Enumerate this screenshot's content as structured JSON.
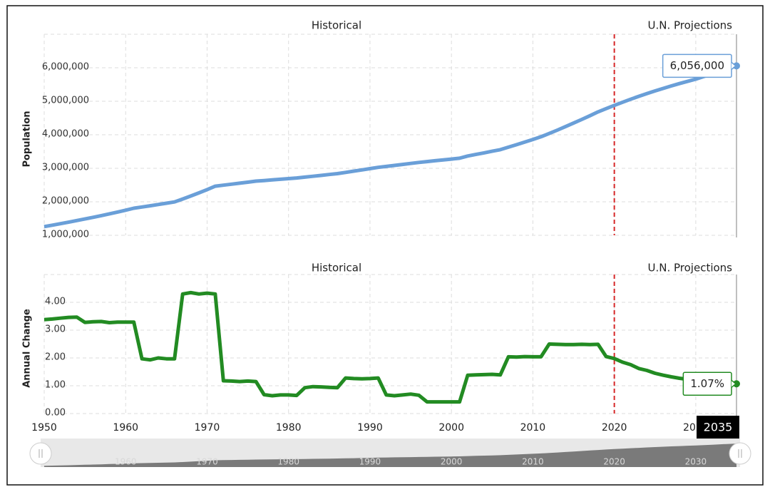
{
  "chart_data": [
    {
      "type": "line",
      "sections": [
        "Historical",
        "U.N. Projections"
      ],
      "ylabel": "Population",
      "color": "#6a9fd8",
      "divider": 2020,
      "divider_color": "#d62728",
      "x": [
        1950,
        1951,
        1952,
        1953,
        1954,
        1955,
        1956,
        1957,
        1958,
        1959,
        1960,
        1961,
        1962,
        1963,
        1964,
        1965,
        1966,
        1967,
        1968,
        1969,
        1970,
        1971,
        1972,
        1973,
        1974,
        1975,
        1976,
        1977,
        1978,
        1979,
        1980,
        1981,
        1982,
        1983,
        1984,
        1985,
        1986,
        1987,
        1988,
        1989,
        1990,
        1991,
        1992,
        1993,
        1994,
        1995,
        1996,
        1997,
        1998,
        1999,
        2000,
        2001,
        2002,
        2003,
        2004,
        2005,
        2006,
        2007,
        2008,
        2009,
        2010,
        2011,
        2012,
        2013,
        2014,
        2015,
        2016,
        2017,
        2018,
        2019,
        2020,
        2021,
        2022,
        2023,
        2024,
        2025,
        2026,
        2027,
        2028,
        2029,
        2030,
        2031,
        2032,
        2033,
        2034,
        2035
      ],
      "values": [
        1260000,
        1302000,
        1346000,
        1392000,
        1440000,
        1488000,
        1537000,
        1588000,
        1640000,
        1694000,
        1750000,
        1808000,
        1844000,
        1881000,
        1919000,
        1957000,
        1996000,
        2082000,
        2172000,
        2266000,
        2363000,
        2465000,
        2495000,
        2525000,
        2555000,
        2586000,
        2617000,
        2635000,
        2654000,
        2672000,
        2691000,
        2710000,
        2736000,
        2762000,
        2788000,
        2814000,
        2841000,
        2877000,
        2914000,
        2951000,
        2989000,
        3027000,
        3055000,
        3085000,
        3115000,
        3145000,
        3175000,
        3200000,
        3225000,
        3250000,
        3275000,
        3300000,
        3366000,
        3413000,
        3460000,
        3508000,
        3556000,
        3630000,
        3705000,
        3782000,
        3860000,
        3940000,
        4038000,
        4139000,
        4243000,
        4349000,
        4458000,
        4569000,
        4683000,
        4781000,
        4877000,
        4970000,
        5060000,
        5146000,
        5229000,
        5308000,
        5384000,
        5457000,
        5527000,
        5594000,
        5659000,
        5740000,
        5820000,
        5900000,
        5978000,
        6056000
      ],
      "value_labels": [
        null,
        null,
        null,
        null,
        null,
        null,
        null,
        null,
        null,
        null,
        null,
        null,
        null,
        null,
        null,
        null,
        null,
        null,
        null,
        null,
        null,
        null,
        null,
        null,
        null,
        null,
        null,
        null,
        null,
        null,
        null,
        null,
        null,
        null,
        null,
        null,
        null,
        null,
        null,
        null,
        null,
        null,
        null,
        null,
        null,
        null,
        null,
        null,
        null,
        null,
        null,
        null,
        null,
        null,
        null,
        null,
        null,
        null,
        null,
        null,
        null,
        null,
        null,
        null,
        null,
        null,
        null,
        null,
        null,
        null,
        null,
        null,
        null,
        null,
        null,
        null,
        null,
        null,
        null,
        null,
        null,
        null,
        null,
        null,
        null,
        "6,056,000"
      ],
      "xlim": [
        1950,
        2035
      ],
      "ylim": [
        1000000,
        7000000
      ],
      "yticks": [
        {
          "value": 1000000,
          "label": "1,000,000"
        },
        {
          "value": 2000000,
          "label": "2,000,000"
        },
        {
          "value": 3000000,
          "label": "3,000,000"
        },
        {
          "value": 4000000,
          "label": "4,000,000"
        },
        {
          "value": 5000000,
          "label": "5,000,000"
        },
        {
          "value": 6000000,
          "label": "6,000,000"
        }
      ],
      "grid": true
    },
    {
      "type": "line",
      "sections": [
        "Historical",
        "U.N. Projections"
      ],
      "ylabel": "Annual Change",
      "color": "#228b22",
      "divider": 2020,
      "divider_color": "#d62728",
      "x": [
        1950,
        1951,
        1952,
        1953,
        1954,
        1955,
        1956,
        1957,
        1958,
        1959,
        1960,
        1961,
        1962,
        1963,
        1964,
        1965,
        1966,
        1967,
        1968,
        1969,
        1970,
        1971,
        1972,
        1973,
        1974,
        1975,
        1976,
        1977,
        1978,
        1979,
        1980,
        1981,
        1982,
        1983,
        1984,
        1985,
        1986,
        1987,
        1988,
        1989,
        1990,
        1991,
        1992,
        1993,
        1994,
        1995,
        1996,
        1997,
        1998,
        1999,
        2000,
        2001,
        2002,
        2003,
        2004,
        2005,
        2006,
        2007,
        2008,
        2009,
        2010,
        2011,
        2012,
        2013,
        2014,
        2015,
        2016,
        2017,
        2018,
        2019,
        2020,
        2021,
        2022,
        2023,
        2024,
        2025,
        2026,
        2027,
        2028,
        2029,
        2030,
        2031,
        2032,
        2033,
        2034,
        2035
      ],
      "values": [
        3.38,
        3.4,
        3.43,
        3.46,
        3.47,
        3.28,
        3.3,
        3.31,
        3.27,
        3.29,
        3.29,
        3.29,
        1.97,
        1.93,
        2.0,
        1.97,
        1.97,
        4.3,
        4.35,
        4.3,
        4.33,
        4.3,
        1.18,
        1.17,
        1.15,
        1.17,
        1.15,
        0.68,
        0.64,
        0.67,
        0.67,
        0.65,
        0.93,
        0.97,
        0.96,
        0.94,
        0.93,
        1.28,
        1.26,
        1.25,
        1.26,
        1.28,
        0.67,
        0.64,
        0.67,
        0.7,
        0.66,
        0.42,
        0.42,
        0.42,
        0.42,
        0.42,
        1.38,
        1.39,
        1.4,
        1.41,
        1.39,
        2.04,
        2.03,
        2.05,
        2.04,
        2.04,
        2.5,
        2.49,
        2.48,
        2.48,
        2.49,
        2.48,
        2.49,
        2.05,
        1.98,
        1.85,
        1.76,
        1.62,
        1.55,
        1.45,
        1.38,
        1.32,
        1.27,
        1.23,
        1.2,
        1.17,
        1.14,
        1.11,
        1.09,
        1.07
      ],
      "value_labels": [
        null,
        null,
        null,
        null,
        null,
        null,
        null,
        null,
        null,
        null,
        null,
        null,
        null,
        null,
        null,
        null,
        null,
        null,
        null,
        null,
        null,
        null,
        null,
        null,
        null,
        null,
        null,
        null,
        null,
        null,
        null,
        null,
        null,
        null,
        null,
        null,
        null,
        null,
        null,
        null,
        null,
        null,
        null,
        null,
        null,
        null,
        null,
        null,
        null,
        null,
        null,
        null,
        null,
        null,
        null,
        null,
        null,
        null,
        null,
        null,
        null,
        null,
        null,
        null,
        null,
        null,
        null,
        null,
        null,
        null,
        null,
        null,
        null,
        null,
        null,
        null,
        null,
        null,
        null,
        null,
        null,
        null,
        null,
        null,
        null,
        "1.07%"
      ],
      "xlim": [
        1950,
        2035
      ],
      "ylim": [
        0,
        5
      ],
      "xticks": [
        1950,
        1960,
        1970,
        1980,
        1990,
        2000,
        2010,
        2020,
        2030
      ],
      "yticks": [
        {
          "value": 0,
          "label": "0.00"
        },
        {
          "value": 1,
          "label": "1.00"
        },
        {
          "value": 2,
          "label": "2.00"
        },
        {
          "value": 3,
          "label": "3.00"
        },
        {
          "value": 4,
          "label": "4.00"
        }
      ],
      "grid": true
    }
  ],
  "navigator": {
    "xticks": [
      1960,
      1970,
      1980,
      1990,
      2000,
      2010,
      2020,
      2030
    ]
  }
}
